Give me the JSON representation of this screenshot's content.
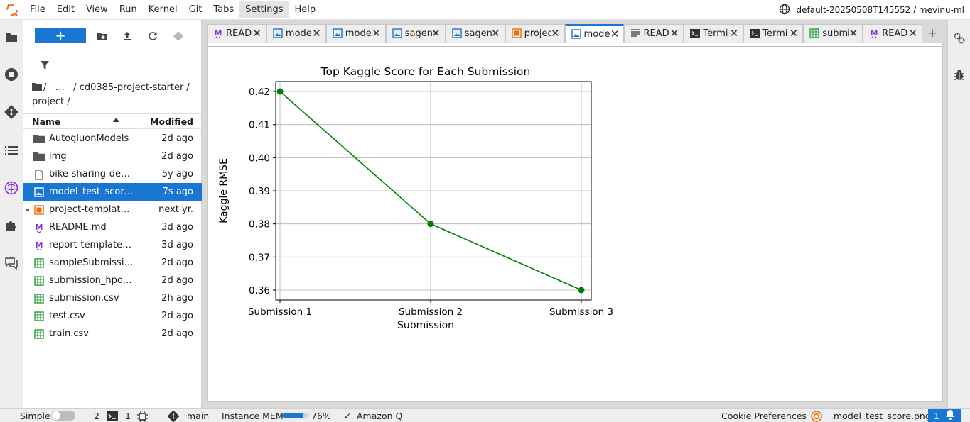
{
  "menubar": {
    "items": [
      "File",
      "Edit",
      "View",
      "Run",
      "Kernel",
      "Git",
      "Tabs",
      "Settings",
      "Help"
    ],
    "active": "Settings",
    "workspace": "default-20250508T145552 / mevinu-ml"
  },
  "filebrowser": {
    "new_label": "+",
    "breadcrumb": "/   …   / cd0385-project-starter / project /",
    "columns": {
      "name": "Name",
      "modified": "Modified"
    },
    "files": [
      {
        "name": "AutogluonModels",
        "modified": "2d ago",
        "icon": "folder-icon"
      },
      {
        "name": "img",
        "modified": "2d ago",
        "icon": "folder-icon"
      },
      {
        "name": "bike-sharing-dem…",
        "modified": "5y ago",
        "icon": "file-icon"
      },
      {
        "name": "model_test_score.…",
        "modified": "7s ago",
        "icon": "image-icon",
        "selected": true
      },
      {
        "name": "project-template.i…",
        "modified": "next yr.",
        "icon": "notebook-icon",
        "running": true
      },
      {
        "name": "README.md",
        "modified": "3d ago",
        "icon": "markdown-icon"
      },
      {
        "name": "report-template.md",
        "modified": "3d ago",
        "icon": "markdown-icon"
      },
      {
        "name": "sampleSubmissio…",
        "modified": "2d ago",
        "icon": "csv-icon"
      },
      {
        "name": "submission_hpo.csv",
        "modified": "2d ago",
        "icon": "csv-icon"
      },
      {
        "name": "submission.csv",
        "modified": "2h ago",
        "icon": "csv-icon"
      },
      {
        "name": "test.csv",
        "modified": "2d ago",
        "icon": "csv-icon"
      },
      {
        "name": "train.csv",
        "modified": "2d ago",
        "icon": "csv-icon"
      }
    ]
  },
  "tabs": [
    {
      "label": "READ",
      "icon": "markdown-icon"
    },
    {
      "label": "mode",
      "icon": "image-icon"
    },
    {
      "label": "mode",
      "icon": "image-icon"
    },
    {
      "label": "sagen",
      "icon": "image-icon"
    },
    {
      "label": "sagen",
      "icon": "image-icon"
    },
    {
      "label": "projec",
      "icon": "notebook-icon"
    },
    {
      "label": "mode",
      "icon": "image-icon",
      "current": true
    },
    {
      "label": "READ",
      "icon": "text-icon"
    },
    {
      "label": "Termi",
      "icon": "terminal-icon"
    },
    {
      "label": "Termi",
      "icon": "terminal-icon"
    },
    {
      "label": "submi",
      "icon": "csv-icon"
    },
    {
      "label": "READ",
      "icon": "markdown-icon"
    }
  ],
  "chart_data": {
    "type": "line",
    "title": "Top Kaggle Score for Each Submission",
    "xlabel": "Submission",
    "ylabel": "Kaggle RMSE",
    "categories": [
      "Submission 1",
      "Submission 2",
      "Submission 3"
    ],
    "series": [
      {
        "values": [
          0.42,
          0.38,
          0.36
        ],
        "color": "#008000"
      }
    ],
    "yticks": [
      "0.36",
      "0.37",
      "0.38",
      "0.39",
      "0.40",
      "0.41",
      "0.42"
    ],
    "ylim": [
      0.357,
      0.423
    ],
    "grid": true
  },
  "statusbar": {
    "simple": "Simple",
    "terminals": "2",
    "kernels": "1",
    "branch": "main",
    "mem_label": "Instance MEM",
    "mem_percent": "76%",
    "mem_fraction": 0.76,
    "amazon_q": "Amazon Q",
    "cookie": "Cookie Preferences",
    "current_file": "model_test_score.png",
    "notifications": "1"
  },
  "colors": {
    "accent": "#1976d2",
    "line": "#008000",
    "csv": "#2e9e3e",
    "markdown": "#8a2be2",
    "notebook": "#ef6c00"
  }
}
